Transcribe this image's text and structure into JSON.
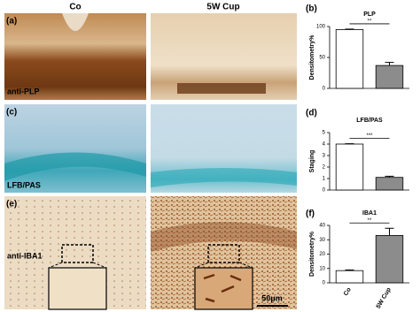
{
  "figure": {
    "columns": [
      "Co",
      "5W Cup"
    ],
    "panels": [
      {
        "label": "(a)",
        "stain": "anti-PLP"
      },
      {
        "label": "(c)",
        "stain": "LFB/PAS"
      },
      {
        "label": "(e)",
        "stain": "anti-IBA1"
      }
    ],
    "scale_bar": "50μm"
  },
  "chart_data": [
    {
      "type": "bar",
      "label": "(b)",
      "title": "PLP",
      "y_label": "Densitometry%",
      "categories": [
        null,
        null
      ],
      "values": [
        95,
        37
      ],
      "errors": [
        0.8,
        5
      ],
      "colors": [
        "#ffffff",
        "#8c8c8c"
      ],
      "significance": "**",
      "ylim": [
        0,
        100
      ],
      "yticks": [
        0,
        50,
        100
      ]
    },
    {
      "type": "bar",
      "label": "(d)",
      "title": "LFB/PAS",
      "y_label": "Staging",
      "categories": [
        null,
        null
      ],
      "values": [
        4,
        1.1
      ],
      "errors": [
        0.03,
        0.1
      ],
      "colors": [
        "#ffffff",
        "#8c8c8c"
      ],
      "significance": "***",
      "ylim": [
        0,
        5
      ],
      "yticks": [
        0,
        1,
        2,
        3,
        4,
        5
      ]
    },
    {
      "type": "bar",
      "label": "(f)",
      "title": "IBA1",
      "y_label": "Densitometry%",
      "categories": [
        "Co",
        "5W Cup"
      ],
      "values": [
        8.5,
        33
      ],
      "errors": [
        0.5,
        5
      ],
      "colors": [
        "#ffffff",
        "#8c8c8c"
      ],
      "significance": "**",
      "ylim": [
        0,
        40
      ],
      "yticks": [
        0,
        10,
        20,
        30,
        40
      ]
    }
  ]
}
